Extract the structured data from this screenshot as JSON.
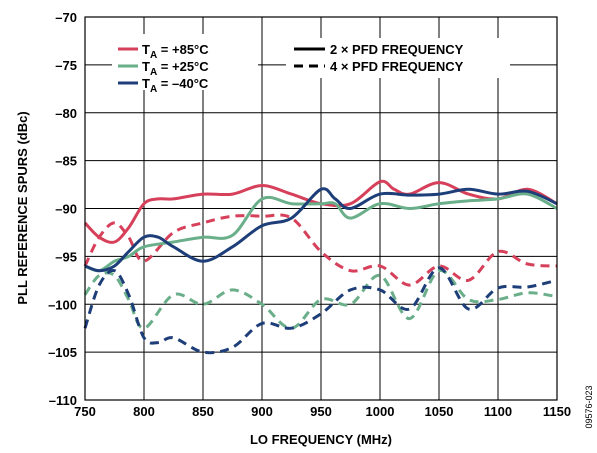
{
  "chart_data": {
    "type": "line",
    "xlabel": "LO FREQUENCY (MHz)",
    "ylabel": "PLL REFERENCE SPURS (dBc)",
    "xlim": [
      750,
      1150
    ],
    "ylim": [
      -110,
      -70
    ],
    "xticks": [
      750,
      800,
      850,
      900,
      950,
      1000,
      1050,
      1100,
      1150
    ],
    "yticks": [
      -70,
      -75,
      -80,
      -85,
      -90,
      -95,
      -100,
      -105,
      -110
    ],
    "xtick_labels": [
      "750",
      "800",
      "850",
      "900",
      "950",
      "1000",
      "1050",
      "1100",
      "1150"
    ],
    "ytick_labels": [
      "–70",
      "–75",
      "–80",
      "–85",
      "–90",
      "–95",
      "–100",
      "–105",
      "–110"
    ],
    "grid": true,
    "figure_id": "09576-023",
    "legend_temperature": [
      {
        "prefix": "T",
        "sub": "A",
        "value": " = +85°C",
        "color": "#d6405a"
      },
      {
        "prefix": "T",
        "sub": "A",
        "value": " = +25°C",
        "color": "#6aaf8a"
      },
      {
        "prefix": "T",
        "sub": "A",
        "value": " = –40°C",
        "color": "#1d3e78"
      }
    ],
    "legend_style": [
      {
        "label": "2 × PFD FREQUENCY",
        "dash": "solid"
      },
      {
        "label": "4 × PFD FREQUENCY",
        "dash": "dashed"
      }
    ],
    "series": [
      {
        "temp": "+85°C",
        "pfd": "2x",
        "color": "#d6405a",
        "dash": "solid",
        "x": [
          750,
          762,
          775,
          787,
          800,
          812,
          825,
          850,
          875,
          900,
          925,
          950,
          975,
          1000,
          1012,
          1025,
          1050,
          1075,
          1100,
          1125,
          1150
        ],
        "y": [
          -91.5,
          -93,
          -93.5,
          -92,
          -89.5,
          -89,
          -89,
          -88.5,
          -88.5,
          -87.6,
          -88.5,
          -89.5,
          -89.5,
          -87.2,
          -88,
          -88.5,
          -87.3,
          -88.5,
          -89,
          -88,
          -89.5
        ]
      },
      {
        "temp": "+25°C",
        "pfd": "2x",
        "color": "#6aaf8a",
        "dash": "solid",
        "x": [
          750,
          762,
          775,
          787,
          800,
          825,
          850,
          875,
          900,
          925,
          950,
          962,
          975,
          1000,
          1025,
          1050,
          1075,
          1100,
          1125,
          1150
        ],
        "y": [
          -96,
          -96.5,
          -95.5,
          -95,
          -94,
          -93.5,
          -93,
          -92.8,
          -89,
          -89.5,
          -89.5,
          -89.5,
          -91,
          -89.5,
          -90,
          -89.5,
          -89.2,
          -89,
          -88.5,
          -90
        ]
      },
      {
        "temp": "–40°C",
        "pfd": "2x",
        "color": "#1d3e78",
        "dash": "solid",
        "x": [
          750,
          762,
          775,
          787,
          800,
          812,
          825,
          850,
          875,
          900,
          925,
          950,
          962,
          975,
          1000,
          1025,
          1050,
          1075,
          1100,
          1125,
          1150
        ],
        "y": [
          -96,
          -96.5,
          -96,
          -94.5,
          -93,
          -93,
          -94,
          -95.5,
          -94,
          -91.8,
          -91,
          -88,
          -89,
          -90,
          -88.5,
          -88.6,
          -88.5,
          -88,
          -88.5,
          -88.2,
          -89.5
        ]
      },
      {
        "temp": "+85°C",
        "pfd": "4x",
        "color": "#d6405a",
        "dash": "dashed",
        "x": [
          750,
          762,
          775,
          787,
          800,
          825,
          850,
          875,
          900,
          925,
          950,
          975,
          1000,
          1025,
          1050,
          1075,
          1100,
          1125,
          1150
        ],
        "y": [
          -96,
          -93,
          -91.5,
          -93,
          -95.5,
          -92.5,
          -91.5,
          -90.8,
          -90.8,
          -91,
          -94.5,
          -96.5,
          -96,
          -98,
          -96,
          -97.5,
          -94.5,
          -95.8,
          -96
        ]
      },
      {
        "temp": "+25°C",
        "pfd": "4x",
        "color": "#6aaf8a",
        "dash": "dashed",
        "x": [
          750,
          762,
          775,
          787,
          800,
          825,
          850,
          875,
          900,
          925,
          950,
          975,
          1000,
          1025,
          1050,
          1075,
          1100,
          1125,
          1150
        ],
        "y": [
          -99,
          -97,
          -97,
          -99.5,
          -102.5,
          -99,
          -100,
          -98.5,
          -100,
          -102.5,
          -99.5,
          -100,
          -97,
          -101.5,
          -96.5,
          -99.5,
          -99.5,
          -98.8,
          -99.2
        ]
      },
      {
        "temp": "–40°C",
        "pfd": "4x",
        "color": "#1d3e78",
        "dash": "dashed",
        "x": [
          750,
          762,
          775,
          787,
          800,
          812,
          825,
          850,
          875,
          900,
          925,
          950,
          975,
          1000,
          1025,
          1050,
          1075,
          1100,
          1125,
          1150
        ],
        "y": [
          -102.5,
          -98,
          -96.5,
          -99,
          -103.5,
          -104,
          -103.5,
          -105,
          -104.5,
          -102,
          -102.5,
          -101,
          -98.5,
          -98.5,
          -100.5,
          -96.2,
          -100.5,
          -98.3,
          -98.2,
          -97.5
        ]
      }
    ]
  }
}
